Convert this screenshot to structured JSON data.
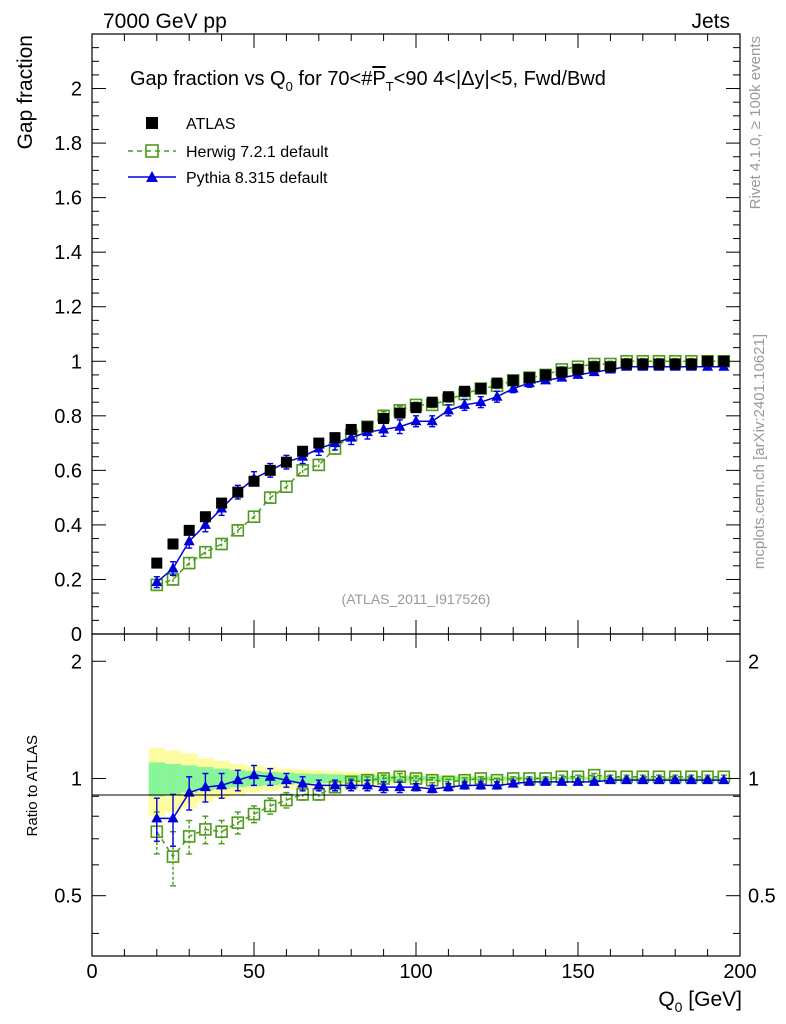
{
  "header": {
    "left": "7000 GeV pp",
    "right": "Jets"
  },
  "side_labels": {
    "rivet": "Rivet 4.1.0, ≥ 100k events",
    "mcplots": "mcplots.cern.ch [arXiv:2401.10621]"
  },
  "colors": {
    "atlas": "#000000",
    "herwig": "#4d9a1c",
    "pythia": "#0000dd",
    "band_inner": "#88f59a",
    "band_outer": "#fdfca0"
  },
  "chart_data": {
    "type": "scatter",
    "title": {
      "prefix": "Gap fraction vs Q",
      "sub": "0",
      "mid": " for 70<#",
      "overline": "P",
      "overline_sub": "T",
      "suffix": "<90  4<|Δy|<5, Fwd/Bwd"
    },
    "watermark": "(ATLAS_2011_I917526)",
    "xlabel": {
      "main": "Q",
      "sub": "0",
      "unit": " [GeV]"
    },
    "ylabel": "Gap fraction",
    "ratio_ylabel": "Ratio to ATLAS",
    "xlim": [
      0,
      200
    ],
    "ylim": [
      0,
      2.2
    ],
    "ratio_ylim": [
      0.35,
      2.35
    ],
    "x_ticks": [
      "0",
      "50",
      "100",
      "150",
      "200"
    ],
    "y_ticks": [
      "0",
      "0.2",
      "0.4",
      "0.6",
      "0.8",
      "1",
      "1.2",
      "1.4",
      "1.6",
      "1.8",
      "2"
    ],
    "ratio_ticks": [
      "0.5",
      "1",
      "2"
    ],
    "legend": {
      "position": "top-left",
      "entries": [
        "ATLAS",
        "Herwig 7.2.1 default",
        "Pythia 8.315 default"
      ]
    },
    "x": [
      20,
      25,
      30,
      35,
      40,
      45,
      50,
      55,
      60,
      65,
      70,
      75,
      80,
      85,
      90,
      95,
      100,
      105,
      110,
      115,
      120,
      125,
      130,
      135,
      140,
      145,
      150,
      155,
      160,
      165,
      170,
      175,
      180,
      185,
      190,
      195
    ],
    "series": [
      {
        "name": "ATLAS",
        "values": [
          0.26,
          0.33,
          0.38,
          0.43,
          0.48,
          0.52,
          0.56,
          0.6,
          0.63,
          0.67,
          0.7,
          0.72,
          0.75,
          0.76,
          0.79,
          0.81,
          0.83,
          0.85,
          0.87,
          0.89,
          0.9,
          0.92,
          0.93,
          0.94,
          0.95,
          0.96,
          0.97,
          0.98,
          0.98,
          0.99,
          0.99,
          0.99,
          0.99,
          0.99,
          1.0,
          1.0
        ],
        "ratio_band_inner": [
          0.1,
          0.09,
          0.08,
          0.07,
          0.06,
          0.05,
          0.045,
          0.04,
          0.035,
          0.03,
          0.028,
          0.025,
          0.022,
          0.02,
          0.018,
          0.016,
          0.015,
          0.014,
          0.013,
          0.012,
          0.011,
          0.01,
          0.01,
          0.009,
          0.008,
          0.008,
          0.007,
          0.006,
          0.006,
          0.005,
          0.005,
          0.005,
          0.005,
          0.005,
          0.005,
          0.005
        ],
        "ratio_band_outer": [
          0.2,
          0.18,
          0.16,
          0.13,
          0.11,
          0.09,
          0.08,
          0.07,
          0.06,
          0.055,
          0.05,
          0.045,
          0.04,
          0.035,
          0.03,
          0.028,
          0.026,
          0.024,
          0.022,
          0.02,
          0.018,
          0.016,
          0.015,
          0.014,
          0.013,
          0.012,
          0.011,
          0.01,
          0.009,
          0.009,
          0.008,
          0.008,
          0.008,
          0.008,
          0.008,
          0.008
        ]
      },
      {
        "name": "Herwig 7.2.1 default",
        "values": [
          0.18,
          0.2,
          0.26,
          0.3,
          0.33,
          0.38,
          0.43,
          0.5,
          0.54,
          0.6,
          0.62,
          0.68,
          0.73,
          0.76,
          0.8,
          0.82,
          0.84,
          0.84,
          0.86,
          0.88,
          0.9,
          0.91,
          0.93,
          0.94,
          0.95,
          0.97,
          0.98,
          0.99,
          0.99,
          1.0,
          1.0,
          1.0,
          1.0,
          1.0,
          1.0,
          1.0
        ],
        "errors": [
          0.02,
          0.02,
          0.02,
          0.02,
          0.02,
          0.02,
          0.02,
          0.02,
          0.02,
          0.02,
          0.02,
          0.02,
          0.015,
          0.015,
          0.015,
          0.015,
          0.01,
          0.01,
          0.01,
          0.01,
          0.01,
          0.01,
          0.01,
          0.01,
          0.01,
          0.01,
          0.01,
          0.01,
          0.01,
          0.01,
          0.01,
          0.01,
          0.01,
          0.01,
          0.01,
          0.01
        ],
        "ratio": [
          0.73,
          0.63,
          0.71,
          0.74,
          0.73,
          0.77,
          0.81,
          0.85,
          0.88,
          0.91,
          0.91,
          0.95,
          0.98,
          0.99,
          1.0,
          1.01,
          1.0,
          0.99,
          0.98,
          0.99,
          1.0,
          0.99,
          1.0,
          1.0,
          1.0,
          1.01,
          1.01,
          1.02,
          1.01,
          1.01,
          1.01,
          1.01,
          1.01,
          1.01,
          1.01,
          1.01
        ],
        "ratio_errors": [
          0.09,
          0.1,
          0.07,
          0.06,
          0.05,
          0.05,
          0.04,
          0.04,
          0.04,
          0.03,
          0.03,
          0.03,
          0.02,
          0.02,
          0.02,
          0.02,
          0.015,
          0.015,
          0.015,
          0.015,
          0.01,
          0.01,
          0.01,
          0.01,
          0.01,
          0.01,
          0.01,
          0.01,
          0.01,
          0.01,
          0.01,
          0.01,
          0.01,
          0.01,
          0.01,
          0.01
        ]
      },
      {
        "name": "Pythia 8.315 default",
        "values": [
          0.19,
          0.24,
          0.34,
          0.4,
          0.46,
          0.52,
          0.57,
          0.6,
          0.63,
          0.65,
          0.68,
          0.7,
          0.72,
          0.74,
          0.75,
          0.76,
          0.78,
          0.78,
          0.82,
          0.84,
          0.85,
          0.87,
          0.9,
          0.92,
          0.93,
          0.94,
          0.95,
          0.96,
          0.97,
          0.98,
          0.98,
          0.98,
          0.98,
          0.98,
          0.98,
          0.98
        ],
        "errors": [
          0.02,
          0.025,
          0.025,
          0.025,
          0.025,
          0.025,
          0.025,
          0.025,
          0.025,
          0.025,
          0.025,
          0.025,
          0.025,
          0.025,
          0.025,
          0.025,
          0.02,
          0.02,
          0.02,
          0.02,
          0.02,
          0.02,
          0.015,
          0.015,
          0.01,
          0.01,
          0.01,
          0.01,
          0.01,
          0.01,
          0.01,
          0.01,
          0.01,
          0.01,
          0.01,
          0.01
        ],
        "ratio": [
          0.79,
          0.79,
          0.92,
          0.95,
          0.96,
          0.99,
          1.02,
          1.01,
          0.99,
          0.97,
          0.96,
          0.96,
          0.96,
          0.96,
          0.95,
          0.95,
          0.95,
          0.94,
          0.95,
          0.96,
          0.96,
          0.96,
          0.97,
          0.98,
          0.98,
          0.98,
          0.98,
          0.98,
          0.99,
          0.99,
          0.99,
          0.99,
          0.99,
          0.99,
          0.99,
          0.99
        ],
        "ratio_errors": [
          0.1,
          0.12,
          0.09,
          0.08,
          0.07,
          0.06,
          0.06,
          0.05,
          0.04,
          0.04,
          0.03,
          0.03,
          0.03,
          0.03,
          0.03,
          0.03,
          0.02,
          0.02,
          0.02,
          0.02,
          0.02,
          0.02,
          0.015,
          0.015,
          0.01,
          0.01,
          0.01,
          0.01,
          0.01,
          0.01,
          0.01,
          0.01,
          0.01,
          0.01,
          0.01,
          0.01
        ]
      }
    ]
  }
}
